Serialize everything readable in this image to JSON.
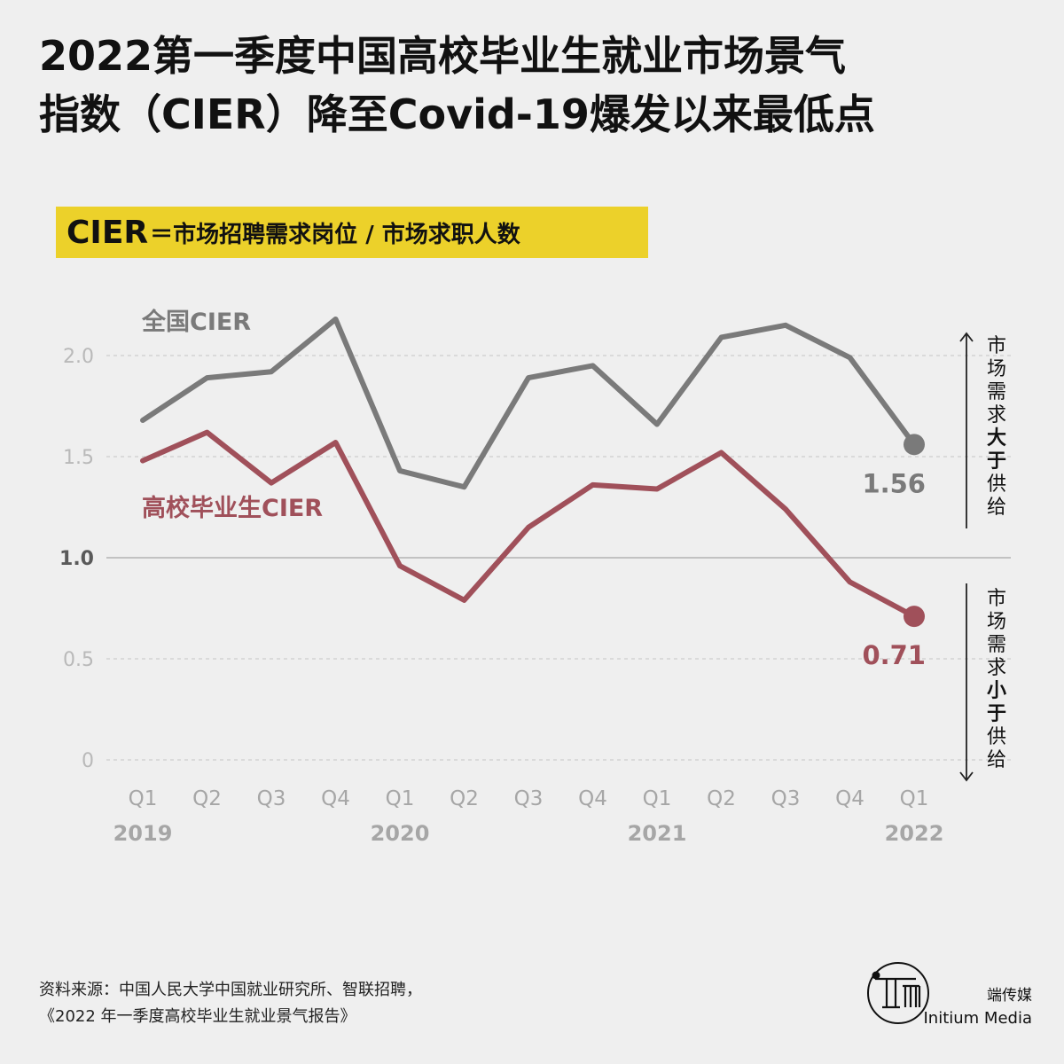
{
  "title": {
    "line1": "2022第一季度中国高校毕业生就业市场景气",
    "line2": "指数（CIER）降至Covid-19爆发以来最低点"
  },
  "formula": {
    "term": "CIER",
    "definition": "＝市场招聘需求岗位 / 市场求职人数"
  },
  "chart_data": {
    "type": "line",
    "categories": [
      "Q1",
      "Q2",
      "Q3",
      "Q4",
      "Q1",
      "Q2",
      "Q3",
      "Q4",
      "Q1",
      "Q2",
      "Q3",
      "Q4",
      "Q1"
    ],
    "years": [
      {
        "label": "2019",
        "index": 0
      },
      {
        "label": "2020",
        "index": 4
      },
      {
        "label": "2021",
        "index": 8
      },
      {
        "label": "2022",
        "index": 12
      }
    ],
    "series": [
      {
        "name": "全国CIER",
        "color": "#7a7a7a",
        "values": [
          1.68,
          1.89,
          1.92,
          2.18,
          1.43,
          1.35,
          1.89,
          1.95,
          1.66,
          2.09,
          2.15,
          1.99,
          1.56
        ],
        "end_label": "1.56"
      },
      {
        "name": "高校毕业生CIER",
        "color": "#a0505a",
        "values": [
          1.48,
          1.62,
          1.37,
          1.57,
          0.96,
          0.79,
          1.15,
          1.36,
          1.34,
          1.52,
          1.24,
          0.88,
          0.71
        ],
        "end_label": "0.71"
      }
    ],
    "y_ticks": [
      "0",
      "0.5",
      "1.0",
      "1.5",
      "2.0"
    ],
    "y_tick_values": [
      0,
      0.5,
      1.0,
      1.5,
      2.0
    ],
    "ylim": [
      0,
      2.2
    ],
    "reference_line": 1.0,
    "annotations": {
      "above": {
        "prefix": "市场需求",
        "emphasis": "大于",
        "suffix": "供给"
      },
      "below": {
        "prefix": "市场需求",
        "emphasis": "小于",
        "suffix": "供给"
      }
    }
  },
  "footer": {
    "source_line1": "资料来源：中国人民大学中国就业研究所、智联招聘，",
    "source_line2": "《2022 年一季度高校毕业生就业景气报告》"
  },
  "brand": {
    "name_cn": "端传媒",
    "name_en": "Initium Media"
  }
}
